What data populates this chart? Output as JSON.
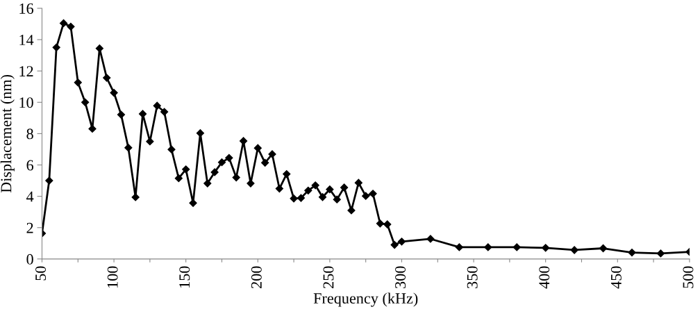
{
  "chart_data": {
    "type": "line",
    "xlabel": "Frequency (kHz)",
    "ylabel": "Displacement (nm)",
    "x": [
      50,
      55,
      60,
      65,
      70,
      75,
      80,
      85,
      90,
      95,
      100,
      105,
      110,
      115,
      120,
      125,
      130,
      135,
      140,
      145,
      150,
      155,
      160,
      165,
      170,
      175,
      180,
      185,
      190,
      195,
      200,
      205,
      210,
      215,
      220,
      225,
      230,
      235,
      240,
      245,
      250,
      255,
      260,
      265,
      270,
      275,
      280,
      285,
      290,
      295,
      300,
      320,
      340,
      360,
      380,
      400,
      420,
      440,
      460,
      480,
      500
    ],
    "series": [
      {
        "color": "#000000",
        "values": [
          1.63,
          5.0,
          13.5,
          15.05,
          14.83,
          11.26,
          10.0,
          8.31,
          13.44,
          11.56,
          10.61,
          9.21,
          7.1,
          3.94,
          9.26,
          7.5,
          9.78,
          9.39,
          6.99,
          5.15,
          5.72,
          3.57,
          8.03,
          4.82,
          5.54,
          6.17,
          6.45,
          5.2,
          7.53,
          4.82,
          7.08,
          6.14,
          6.69,
          4.49,
          5.42,
          3.86,
          3.89,
          4.37,
          4.7,
          3.95,
          4.44,
          3.8,
          4.56,
          3.1,
          4.86,
          4.02,
          4.17,
          2.26,
          2.21,
          0.9,
          1.11,
          1.28,
          0.75,
          0.75,
          0.75,
          0.71,
          0.57,
          0.68,
          0.41,
          0.35,
          0.45
        ]
      }
    ],
    "xlim": [
      50,
      500
    ],
    "xticks": [
      50,
      {
        "value": 75,
        "label": null
      },
      100,
      {
        "value": 125,
        "label": null
      },
      150,
      {
        "value": 175,
        "label": null
      },
      200,
      {
        "value": 225,
        "label": null
      },
      250,
      {
        "value": 275,
        "label": null
      },
      300,
      {
        "value": 325,
        "label": null
      },
      350,
      {
        "value": 375,
        "label": null
      },
      400,
      {
        "value": 425,
        "label": null
      },
      450,
      {
        "value": 475,
        "label": null
      },
      500
    ],
    "ylim": [
      0,
      16
    ],
    "yticks": [
      0,
      2,
      4,
      6,
      8,
      10,
      12,
      14,
      16
    ],
    "marker": "diamond",
    "line_style": "solid",
    "grid": false,
    "legend": false
  }
}
